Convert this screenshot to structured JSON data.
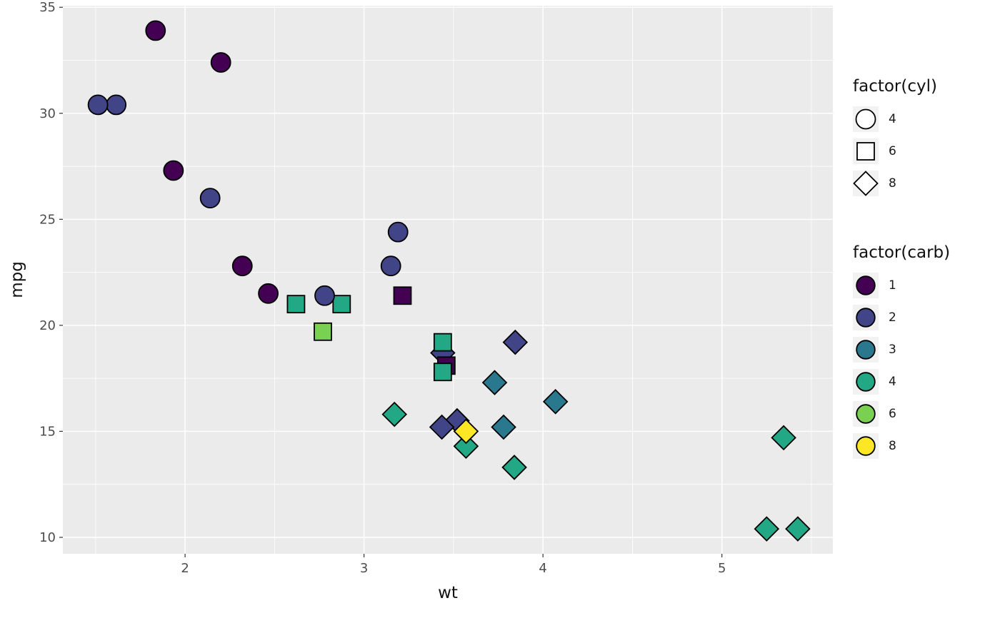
{
  "chart_data": {
    "type": "scatter",
    "title": "",
    "xlabel": "wt",
    "ylabel": "mpg",
    "xlim": [
      1.317,
      5.62
    ],
    "ylim": [
      9.225,
      35.075
    ],
    "x_ticks": [
      2,
      3,
      4,
      5
    ],
    "y_ticks": [
      10,
      15,
      20,
      25,
      30,
      35
    ],
    "x_minor_ticks": [
      1.5,
      2.5,
      3.5,
      4.5,
      5.5
    ],
    "y_minor_ticks": [
      12.5,
      17.5,
      22.5,
      27.5,
      32.5
    ],
    "grid": true,
    "legend_position": "right",
    "panel_background": "#EBEBEB",
    "grid_color": "#FFFFFF",
    "axis_text_color": "#4D4D4D",
    "tick_mark_color": "#333333",
    "point_outline_color": "#000000",
    "shape_by": "cyl",
    "fill_by": "carb",
    "shape_map": {
      "4": "circle",
      "6": "square",
      "8": "diamond"
    },
    "fill_map": {
      "1": "#440154",
      "2": "#414487",
      "3": "#2A788E",
      "4": "#22A884",
      "6": "#7AD151",
      "8": "#FDE725"
    },
    "shape_legend": {
      "title": "factor(cyl)",
      "entries": [
        {
          "label": "4",
          "shape": "circle"
        },
        {
          "label": "6",
          "shape": "square"
        },
        {
          "label": "8",
          "shape": "diamond"
        }
      ]
    },
    "fill_legend": {
      "title": "factor(carb)",
      "entries": [
        {
          "label": "1",
          "color": "#440154"
        },
        {
          "label": "2",
          "color": "#414487"
        },
        {
          "label": "3",
          "color": "#2A788E"
        },
        {
          "label": "4",
          "color": "#22A884"
        },
        {
          "label": "6",
          "color": "#7AD151"
        },
        {
          "label": "8",
          "color": "#FDE725"
        }
      ]
    },
    "points": [
      {
        "wt": 2.62,
        "mpg": 21.0,
        "cyl": 6,
        "carb": 4
      },
      {
        "wt": 2.875,
        "mpg": 21.0,
        "cyl": 6,
        "carb": 4
      },
      {
        "wt": 2.32,
        "mpg": 22.8,
        "cyl": 4,
        "carb": 1
      },
      {
        "wt": 3.215,
        "mpg": 21.4,
        "cyl": 6,
        "carb": 1
      },
      {
        "wt": 3.44,
        "mpg": 18.7,
        "cyl": 8,
        "carb": 2
      },
      {
        "wt": 3.46,
        "mpg": 18.1,
        "cyl": 6,
        "carb": 1
      },
      {
        "wt": 3.57,
        "mpg": 14.3,
        "cyl": 8,
        "carb": 4
      },
      {
        "wt": 3.19,
        "mpg": 24.4,
        "cyl": 4,
        "carb": 2
      },
      {
        "wt": 3.15,
        "mpg": 22.8,
        "cyl": 4,
        "carb": 2
      },
      {
        "wt": 3.44,
        "mpg": 19.2,
        "cyl": 6,
        "carb": 4
      },
      {
        "wt": 3.44,
        "mpg": 17.8,
        "cyl": 6,
        "carb": 4
      },
      {
        "wt": 4.07,
        "mpg": 16.4,
        "cyl": 8,
        "carb": 3
      },
      {
        "wt": 3.73,
        "mpg": 17.3,
        "cyl": 8,
        "carb": 3
      },
      {
        "wt": 3.78,
        "mpg": 15.2,
        "cyl": 8,
        "carb": 3
      },
      {
        "wt": 5.25,
        "mpg": 10.4,
        "cyl": 8,
        "carb": 4
      },
      {
        "wt": 5.424,
        "mpg": 10.4,
        "cyl": 8,
        "carb": 4
      },
      {
        "wt": 5.345,
        "mpg": 14.7,
        "cyl": 8,
        "carb": 4
      },
      {
        "wt": 2.2,
        "mpg": 32.4,
        "cyl": 4,
        "carb": 1
      },
      {
        "wt": 1.615,
        "mpg": 30.4,
        "cyl": 4,
        "carb": 2
      },
      {
        "wt": 1.835,
        "mpg": 33.9,
        "cyl": 4,
        "carb": 1
      },
      {
        "wt": 2.465,
        "mpg": 21.5,
        "cyl": 4,
        "carb": 1
      },
      {
        "wt": 3.52,
        "mpg": 15.5,
        "cyl": 8,
        "carb": 2
      },
      {
        "wt": 3.435,
        "mpg": 15.2,
        "cyl": 8,
        "carb": 2
      },
      {
        "wt": 3.84,
        "mpg": 13.3,
        "cyl": 8,
        "carb": 4
      },
      {
        "wt": 3.845,
        "mpg": 19.2,
        "cyl": 8,
        "carb": 2
      },
      {
        "wt": 1.935,
        "mpg": 27.3,
        "cyl": 4,
        "carb": 1
      },
      {
        "wt": 2.14,
        "mpg": 26.0,
        "cyl": 4,
        "carb": 2
      },
      {
        "wt": 1.513,
        "mpg": 30.4,
        "cyl": 4,
        "carb": 2
      },
      {
        "wt": 3.17,
        "mpg": 15.8,
        "cyl": 8,
        "carb": 4
      },
      {
        "wt": 2.77,
        "mpg": 19.7,
        "cyl": 6,
        "carb": 6
      },
      {
        "wt": 3.57,
        "mpg": 15.0,
        "cyl": 8,
        "carb": 8
      },
      {
        "wt": 2.78,
        "mpg": 21.4,
        "cyl": 4,
        "carb": 2
      }
    ]
  }
}
